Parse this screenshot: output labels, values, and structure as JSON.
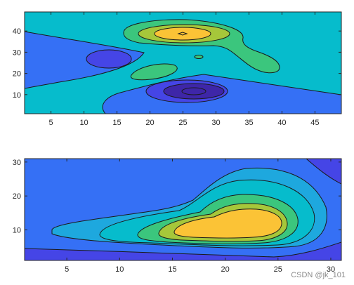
{
  "chart_data": [
    {
      "type": "contourf",
      "title": "",
      "xlabel": "",
      "ylabel": "",
      "xlim": [
        1,
        49
      ],
      "ylim": [
        1,
        49
      ],
      "x_ticks": [
        5,
        10,
        15,
        20,
        25,
        30,
        35,
        40,
        45
      ],
      "y_ticks": [
        10,
        20,
        30,
        40
      ],
      "grid": false,
      "colormap": "parula",
      "fill_order_low_to_high": [
        "#3e26a8",
        "#4545e6",
        "#3570f5",
        "#1ea8de",
        "#06bccc",
        "#3bc67d",
        "#a6c73a",
        "#fbc336"
      ],
      "background_level_color": "#06bccc",
      "features": [
        {
          "kind": "peak",
          "center": [
            25,
            38
          ],
          "levels": [
            "#3bc67d",
            "#a6c73a",
            "#fbc336"
          ]
        },
        {
          "kind": "trough",
          "center": [
            27,
            12
          ],
          "levels": [
            "#3570f5",
            "#4545e6",
            "#3e26a8"
          ]
        },
        {
          "kind": "trough",
          "center": [
            14,
            25
          ],
          "levels": [
            "#3570f5",
            "#4545e6"
          ]
        },
        {
          "kind": "peak",
          "center": [
            21,
            21
          ],
          "levels": [
            "#3bc67d"
          ]
        }
      ]
    },
    {
      "type": "contourf",
      "title": "",
      "xlabel": "",
      "ylabel": "",
      "xlim": [
        1,
        31
      ],
      "ylim": [
        1,
        31
      ],
      "x_ticks": [
        5,
        10,
        15,
        20,
        25,
        30
      ],
      "y_ticks": [
        10,
        20,
        30
      ],
      "grid": false,
      "colormap": "parula",
      "fill_order_low_to_high": [
        "#4545e6",
        "#3570f5",
        "#1ea8de",
        "#06bccc",
        "#3bc67d",
        "#a6c73a",
        "#fbc336"
      ],
      "background_level_color": "#3570f5",
      "features": [
        {
          "kind": "peak",
          "center": [
            19,
            10
          ],
          "levels": [
            "#1ea8de",
            "#06bccc",
            "#3bc67d",
            "#a6c73a",
            "#fbc336"
          ]
        },
        {
          "kind": "trough",
          "center": [
            31,
            31
          ],
          "levels": [
            "#4545e6"
          ]
        },
        {
          "kind": "trough",
          "center": [
            31,
            1
          ],
          "levels": [
            "#4545e6"
          ]
        }
      ]
    }
  ],
  "watermark": "CSDN @jk_101"
}
